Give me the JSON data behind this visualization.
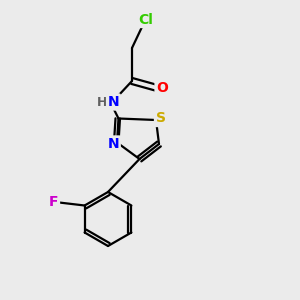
{
  "background_color": "#ebebeb",
  "bond_color": "#000000",
  "atom_colors": {
    "Cl": "#33cc00",
    "O": "#ff0000",
    "N": "#0000ff",
    "H": "#606060",
    "S": "#ccaa00",
    "F": "#cc00cc",
    "C": "#000000"
  },
  "figsize": [
    3.0,
    3.0
  ],
  "dpi": 100,
  "lw": 1.6,
  "fs": 10,
  "dbl_off": 0.12
}
